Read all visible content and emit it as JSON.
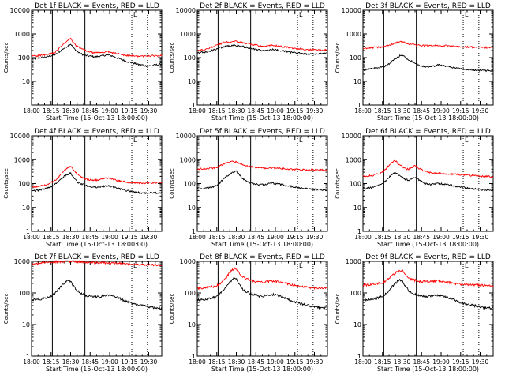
{
  "figure": {
    "xlabel": "Start Time (15-Oct-13 18:00:00)",
    "ylabel": "Counts/sec",
    "x_ticks": [
      "18:00",
      "18:15",
      "18:30",
      "18:45",
      "19:00",
      "19:15",
      "19:30"
    ],
    "y_ticks": [
      "1",
      "10",
      "100",
      "1000",
      "10000"
    ],
    "marker_text": "L"
  },
  "chart_data": [
    {
      "type": "line",
      "title": "Det 1f BLACK = Events, RED = LLD",
      "xlim_min": [
        0,
        100
      ],
      "ylim": [
        1,
        10000
      ],
      "yscale": "log",
      "solid_lines_min": [
        16,
        41
      ],
      "dotted_lines_min": [
        77,
        89
      ],
      "series": [
        {
          "name": "Events",
          "color": "#000000",
          "values": [
            90,
            90,
            95,
            100,
            105,
            110,
            120,
            130,
            150,
            200,
            250,
            300,
            380,
            250,
            180,
            150,
            130,
            120,
            115,
            110,
            110,
            115,
            120,
            130,
            125,
            115,
            100,
            90,
            80,
            70,
            65,
            60,
            55,
            50,
            50,
            45,
            45,
            45,
            50,
            50,
            55
          ]
        },
        {
          "name": "LLD",
          "color": "#ff0000",
          "values": [
            120,
            120,
            120,
            125,
            130,
            135,
            145,
            160,
            200,
            300,
            400,
            500,
            650,
            400,
            300,
            250,
            220,
            190,
            170,
            160,
            160,
            165,
            170,
            180,
            170,
            160,
            150,
            140,
            130,
            125,
            120,
            118,
            115,
            115,
            115,
            115,
            118,
            118,
            120,
            120,
            125
          ]
        }
      ]
    },
    {
      "type": "line",
      "title": "Det 2f BLACK = Events, RED = LLD",
      "xlim_min": [
        0,
        100
      ],
      "ylim": [
        1,
        10000
      ],
      "yscale": "log",
      "solid_lines_min": [
        16,
        41
      ],
      "dotted_lines_min": [
        77,
        89
      ],
      "series": [
        {
          "name": "Events",
          "color": "#000000",
          "values": [
            160,
            165,
            170,
            180,
            190,
            210,
            230,
            260,
            280,
            300,
            310,
            320,
            330,
            310,
            290,
            270,
            250,
            230,
            220,
            210,
            200,
            200,
            210,
            220,
            215,
            205,
            195,
            185,
            175,
            165,
            160,
            155,
            150,
            145,
            140,
            140,
            140,
            145,
            150,
            155,
            160
          ]
        },
        {
          "name": "LLD",
          "color": "#ff0000",
          "values": [
            200,
            205,
            210,
            230,
            260,
            300,
            340,
            380,
            420,
            450,
            460,
            470,
            480,
            450,
            420,
            400,
            380,
            360,
            340,
            320,
            310,
            310,
            320,
            330,
            320,
            300,
            290,
            280,
            270,
            260,
            250,
            240,
            230,
            225,
            220,
            215,
            210,
            205,
            205,
            210,
            210
          ]
        }
      ]
    },
    {
      "type": "line",
      "title": "Det 3f BLACK = Events, RED = LLD",
      "xlim_min": [
        0,
        100
      ],
      "ylim": [
        1,
        10000
      ],
      "yscale": "log",
      "solid_lines_min": [
        16,
        41
      ],
      "dotted_lines_min": [
        77,
        89
      ],
      "series": [
        {
          "name": "Events",
          "color": "#000000",
          "values": [
            30,
            32,
            33,
            35,
            36,
            38,
            40,
            45,
            55,
            70,
            90,
            110,
            140,
            100,
            80,
            70,
            60,
            50,
            45,
            42,
            40,
            42,
            45,
            50,
            48,
            45,
            42,
            40,
            38,
            35,
            34,
            33,
            32,
            31,
            30,
            30,
            29,
            29,
            28,
            28,
            28
          ]
        },
        {
          "name": "LLD",
          "color": "#ff0000",
          "values": [
            250,
            255,
            260,
            265,
            270,
            280,
            290,
            300,
            330,
            380,
            420,
            450,
            480,
            420,
            380,
            360,
            340,
            330,
            320,
            320,
            320,
            320,
            330,
            330,
            325,
            320,
            310,
            305,
            300,
            300,
            295,
            290,
            285,
            280,
            280,
            275,
            275,
            270,
            270,
            270,
            270
          ]
        }
      ]
    },
    {
      "type": "line",
      "title": "Det 4f BLACK = Events, RED = LLD",
      "xlim_min": [
        0,
        100
      ],
      "ylim": [
        1,
        10000
      ],
      "yscale": "log",
      "solid_lines_min": [
        16,
        41
      ],
      "dotted_lines_min": [
        77,
        89
      ],
      "series": [
        {
          "name": "Events",
          "color": "#000000",
          "values": [
            50,
            50,
            52,
            55,
            60,
            65,
            75,
            90,
            110,
            150,
            200,
            240,
            280,
            170,
            120,
            100,
            90,
            80,
            75,
            70,
            70,
            72,
            75,
            80,
            78,
            72,
            65,
            60,
            55,
            50,
            48,
            45,
            43,
            42,
            40,
            40,
            40,
            40,
            40,
            40,
            40
          ]
        },
        {
          "name": "LLD",
          "color": "#ff0000",
          "values": [
            70,
            72,
            75,
            80,
            85,
            95,
            110,
            130,
            160,
            250,
            350,
            450,
            550,
            350,
            250,
            200,
            170,
            150,
            140,
            135,
            140,
            150,
            160,
            170,
            165,
            155,
            140,
            130,
            120,
            115,
            110,
            108,
            105,
            105,
            105,
            105,
            108,
            108,
            110,
            110,
            110
          ]
        }
      ]
    },
    {
      "type": "line",
      "title": "Det 5f BLACK = Events, RED = LLD",
      "xlim_min": [
        0,
        100
      ],
      "ylim": [
        1,
        10000
      ],
      "yscale": "log",
      "solid_lines_min": [
        16,
        41
      ],
      "dotted_lines_min": [
        77,
        89
      ],
      "series": [
        {
          "name": "Events",
          "color": "#000000",
          "values": [
            60,
            62,
            64,
            66,
            70,
            75,
            85,
            110,
            150,
            200,
            250,
            300,
            330,
            220,
            160,
            130,
            110,
            100,
            95,
            90,
            90,
            95,
            100,
            105,
            100,
            95,
            90,
            85,
            80,
            75,
            70,
            68,
            65,
            62,
            60,
            58,
            56,
            55,
            54,
            53,
            52
          ]
        },
        {
          "name": "LLD",
          "color": "#ff0000",
          "values": [
            400,
            410,
            420,
            430,
            440,
            450,
            480,
            550,
            650,
            750,
            800,
            850,
            800,
            680,
            600,
            560,
            520,
            490,
            470,
            450,
            440,
            440,
            450,
            460,
            450,
            440,
            430,
            420,
            410,
            400,
            395,
            390,
            385,
            380,
            380,
            375,
            375,
            370,
            370,
            365,
            365
          ]
        }
      ]
    },
    {
      "type": "line",
      "title": "Det 6f BLACK = Events, RED = LLD",
      "xlim_min": [
        0,
        100
      ],
      "ylim": [
        1,
        10000
      ],
      "yscale": "log",
      "solid_lines_min": [
        16,
        41
      ],
      "dotted_lines_min": [
        77,
        89
      ],
      "series": [
        {
          "name": "Events",
          "color": "#000000",
          "values": [
            60,
            62,
            65,
            70,
            75,
            85,
            100,
            130,
            180,
            250,
            300,
            230,
            180,
            150,
            140,
            160,
            180,
            150,
            120,
            100,
            95,
            90,
            95,
            100,
            98,
            95,
            90,
            85,
            80,
            75,
            70,
            68,
            65,
            62,
            60,
            58,
            56,
            55,
            54,
            53,
            52
          ]
        },
        {
          "name": "LLD",
          "color": "#ff0000",
          "values": [
            200,
            205,
            210,
            220,
            240,
            260,
            300,
            400,
            600,
            800,
            900,
            650,
            500,
            420,
            400,
            480,
            550,
            450,
            380,
            330,
            300,
            280,
            270,
            270,
            265,
            260,
            255,
            250,
            245,
            240,
            235,
            230,
            225,
            220,
            215,
            210,
            205,
            200,
            200,
            198,
            195
          ]
        }
      ]
    },
    {
      "type": "line",
      "title": "Det 7f BLACK = Events, RED = LLD",
      "xlim_min": [
        0,
        100
      ],
      "ylim": [
        1,
        1000
      ],
      "yscale": "log",
      "solid_lines_min": [
        16,
        41
      ],
      "dotted_lines_min": [
        77,
        89
      ],
      "series": [
        {
          "name": "Events",
          "color": "#000000",
          "values": [
            60,
            60,
            62,
            65,
            68,
            72,
            80,
            95,
            120,
            160,
            200,
            250,
            230,
            160,
            120,
            100,
            90,
            80,
            78,
            75,
            75,
            78,
            80,
            85,
            82,
            78,
            72,
            68,
            60,
            55,
            50,
            47,
            45,
            42,
            40,
            38,
            36,
            35,
            34,
            33,
            33
          ]
        },
        {
          "name": "LLD",
          "color": "#ff0000",
          "values": [
            800,
            820,
            850,
            880,
            900,
            920,
            930,
            950,
            960,
            970,
            980,
            990,
            990,
            980,
            970,
            960,
            950,
            940,
            930,
            920,
            910,
            900,
            900,
            900,
            890,
            880,
            870,
            860,
            850,
            840,
            830,
            820,
            810,
            800,
            800,
            790,
            790,
            780,
            780,
            780,
            770
          ]
        }
      ]
    },
    {
      "type": "line",
      "title": "Det 8f BLACK = Events, RED = LLD",
      "xlim_min": [
        0,
        100
      ],
      "ylim": [
        1,
        1000
      ],
      "yscale": "log",
      "solid_lines_min": [
        16,
        41
      ],
      "dotted_lines_min": [
        77,
        89
      ],
      "series": [
        {
          "name": "Events",
          "color": "#000000",
          "values": [
            60,
            60,
            62,
            65,
            68,
            72,
            80,
            95,
            120,
            160,
            220,
            280,
            300,
            180,
            130,
            110,
            100,
            90,
            85,
            80,
            80,
            82,
            85,
            90,
            88,
            82,
            75,
            70,
            62,
            57,
            52,
            48,
            45,
            42,
            40,
            38,
            36,
            35,
            34,
            34,
            33
          ]
        },
        {
          "name": "LLD",
          "color": "#ff0000",
          "values": [
            140,
            140,
            145,
            150,
            155,
            160,
            170,
            200,
            250,
            320,
            450,
            550,
            600,
            400,
            320,
            280,
            260,
            240,
            230,
            220,
            220,
            225,
            230,
            240,
            235,
            225,
            210,
            200,
            190,
            180,
            170,
            165,
            160,
            155,
            150,
            148,
            146,
            145,
            144,
            143,
            142
          ]
        }
      ]
    },
    {
      "type": "line",
      "title": "Det 9f BLACK = Events, RED = LLD",
      "xlim_min": [
        0,
        100
      ],
      "ylim": [
        1,
        1000
      ],
      "yscale": "log",
      "solid_lines_min": [
        16,
        41
      ],
      "dotted_lines_min": [
        77,
        89
      ],
      "series": [
        {
          "name": "Events",
          "color": "#000000",
          "values": [
            60,
            60,
            62,
            65,
            68,
            72,
            80,
            95,
            120,
            160,
            200,
            260,
            250,
            170,
            120,
            100,
            90,
            85,
            80,
            78,
            78,
            80,
            82,
            85,
            82,
            78,
            72,
            68,
            60,
            55,
            50,
            47,
            45,
            42,
            40,
            38,
            36,
            35,
            34,
            33,
            33
          ]
        },
        {
          "name": "LLD",
          "color": "#ff0000",
          "values": [
            180,
            180,
            185,
            190,
            195,
            200,
            210,
            240,
            290,
            350,
            430,
            500,
            520,
            380,
            300,
            270,
            250,
            240,
            230,
            225,
            225,
            230,
            235,
            245,
            240,
            230,
            220,
            210,
            200,
            195,
            190,
            188,
            185,
            183,
            180,
            178,
            176,
            175,
            174,
            172,
            170
          ]
        }
      ]
    }
  ]
}
